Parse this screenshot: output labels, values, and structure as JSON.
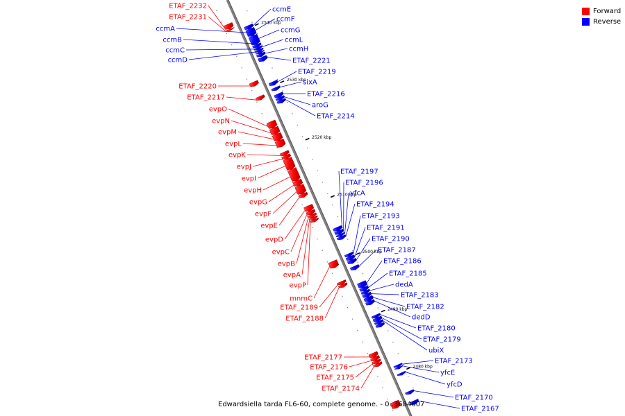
{
  "legend": {
    "items": [
      {
        "label": "Forward",
        "color": "#ff0000"
      },
      {
        "label": "Reverse",
        "color": "#0000ff"
      }
    ]
  },
  "caption": "Edwardsiella tarda FL6-60, complete genome. - 0..3684607",
  "colors": {
    "forward": "#ff0000",
    "reverse": "#0000ff",
    "backbone": "#808080",
    "tick": "#000000"
  },
  "ticks": [
    {
      "label": "2540 kbp",
      "bp": 2540000
    },
    {
      "label": "2530 kbp",
      "bp": 2530000
    },
    {
      "label": "2520 kbp",
      "bp": 2520000
    },
    {
      "label": "2510 kbp",
      "bp": 2510000
    },
    {
      "label": "2500 kbp",
      "bp": 2500000
    },
    {
      "label": "2490 kbp",
      "bp": 2490000
    },
    {
      "label": "2480 kbp",
      "bp": 2480000
    }
  ],
  "forward_genes": [
    {
      "label": "ETAF_2232",
      "start": 2541900,
      "end": 2541100
    },
    {
      "label": "ETAF_2231",
      "start": 2541050,
      "end": 2540800
    },
    {
      "label": "ETAF_2220",
      "start": 2531800,
      "end": 2531100
    },
    {
      "label": "ETAF_2217",
      "start": 2529300,
      "end": 2528700
    },
    {
      "label": "evpO",
      "start": 2524900,
      "end": 2523800
    },
    {
      "label": "evpN",
      "start": 2523800,
      "end": 2522700
    },
    {
      "label": "evpM",
      "start": 2522700,
      "end": 2521600
    },
    {
      "label": "evpL",
      "start": 2521600,
      "end": 2520500
    },
    {
      "label": "evpK",
      "start": 2519600,
      "end": 2519000
    },
    {
      "label": "evpJ",
      "start": 2519000,
      "end": 2518400
    },
    {
      "label": "evpI",
      "start": 2518400,
      "end": 2516600
    },
    {
      "label": "evpH",
      "start": 2516600,
      "end": 2514600
    },
    {
      "label": "evpG",
      "start": 2514600,
      "end": 2513700
    },
    {
      "label": "evpF",
      "start": 2513700,
      "end": 2512300
    },
    {
      "label": "evpE",
      "start": 2512300,
      "end": 2511700
    },
    {
      "label": "evpD",
      "start": 2510200,
      "end": 2509300
    },
    {
      "label": "evpC",
      "start": 2509300,
      "end": 2508700
    },
    {
      "label": "evpB",
      "start": 2508700,
      "end": 2508200
    },
    {
      "label": "evpA",
      "start": 2508200,
      "end": 2507800
    },
    {
      "label": "evpP",
      "start": 2507800,
      "end": 2507400
    },
    {
      "label": "mnmC",
      "start": 2500500,
      "end": 2499400
    },
    {
      "label": "ETAF_2189",
      "start": 2497000,
      "end": 2496500
    },
    {
      "label": "ETAF_2188",
      "start": 2496500,
      "end": 2496000
    },
    {
      "label": "ETAF_2177",
      "start": 2484500,
      "end": 2483800
    },
    {
      "label": "ETAF_2176",
      "start": 2483800,
      "end": 2483200
    },
    {
      "label": "ETAF_2175",
      "start": 2483200,
      "end": 2482700
    },
    {
      "label": "ETAF_2174",
      "start": 2482700,
      "end": 2482200
    },
    {
      "label": "",
      "start": 2476000,
      "end": 2474900
    }
  ],
  "reverse_genes": [
    {
      "label": "ccmE",
      "start": 2540400,
      "end": 2539800
    },
    {
      "label": "ccmF",
      "start": 2539800,
      "end": 2538700
    },
    {
      "label": "ccmA",
      "start": 2538900,
      "end": 2538600
    },
    {
      "label": "ccmG",
      "start": 2538600,
      "end": 2537100
    },
    {
      "label": "ccmB",
      "start": 2537100,
      "end": 2536600
    },
    {
      "label": "ccmL",
      "start": 2536600,
      "end": 2536200
    },
    {
      "label": "ccmC",
      "start": 2536200,
      "end": 2535800
    },
    {
      "label": "ccmD",
      "start": 2535800,
      "end": 2535500
    },
    {
      "label": "ccmH",
      "start": 2535500,
      "end": 2535000
    },
    {
      "label": "ETAF_2221",
      "start": 2534900,
      "end": 2534200
    },
    {
      "label": "ETAF_2219",
      "start": 2530600,
      "end": 2530000
    },
    {
      "label": "sixA",
      "start": 2529600,
      "end": 2529100
    },
    {
      "label": "ETAF_2216",
      "start": 2528500,
      "end": 2527900
    },
    {
      "label": "aroG",
      "start": 2527900,
      "end": 2527400
    },
    {
      "label": "ETAF_2214",
      "start": 2527400,
      "end": 2526900
    },
    {
      "label": "ETAF_2197",
      "start": 2505200,
      "end": 2504600
    },
    {
      "label": "ETAF_2196",
      "start": 2504600,
      "end": 2504000
    },
    {
      "label": "yfcA",
      "start": 2504000,
      "end": 2503600
    },
    {
      "label": "ETAF_2194",
      "start": 2503600,
      "end": 2503100
    },
    {
      "label": "ETAF_2193",
      "start": 2500600,
      "end": 2500100
    },
    {
      "label": "ETAF_2191",
      "start": 2500100,
      "end": 2499500
    },
    {
      "label": "ETAF_2190",
      "start": 2499500,
      "end": 2498900
    },
    {
      "label": "ETAF_2187",
      "start": 2498400,
      "end": 2497800
    },
    {
      "label": "ETAF_2186",
      "start": 2495600,
      "end": 2494700
    },
    {
      "label": "ETAF_2185",
      "start": 2494700,
      "end": 2494100
    },
    {
      "label": "dedA",
      "start": 2494100,
      "end": 2493600
    },
    {
      "label": "ETAF_2183",
      "start": 2493600,
      "end": 2493000
    },
    {
      "label": "ETAF_2182",
      "start": 2493000,
      "end": 2492300
    },
    {
      "label": "dedD",
      "start": 2492300,
      "end": 2491700
    },
    {
      "label": "ETAF_2180",
      "start": 2489900,
      "end": 2489400
    },
    {
      "label": "ETAF_2179",
      "start": 2489400,
      "end": 2488800
    },
    {
      "label": "ubiX",
      "start": 2488800,
      "end": 2488300
    },
    {
      "label": "",
      "start": 2488300,
      "end": 2487800
    },
    {
      "label": "ETAF_2173",
      "start": 2481200,
      "end": 2480800
    },
    {
      "label": "yfcE",
      "start": 2480800,
      "end": 2480500
    },
    {
      "label": "yfcD",
      "start": 2479800,
      "end": 2479400
    },
    {
      "label": "ETAF_2170",
      "start": 2476600,
      "end": 2476100
    },
    {
      "label": "ETAF_2167",
      "start": 2474900,
      "end": 2474300
    }
  ]
}
